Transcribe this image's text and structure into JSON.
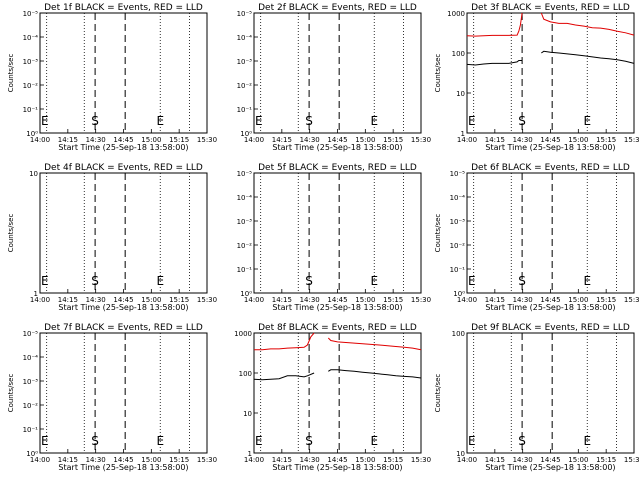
{
  "chart_data": [
    {
      "type": "line",
      "title": "Det 1f BLACK = Events, RED = LLD",
      "xlabel": "Start Time (25-Sep-18 13:58:00)",
      "ylabel": "Counts/sec",
      "x_ticks": [
        "14:00",
        "14:15",
        "14:30",
        "14:45",
        "15:00",
        "15:15",
        "15:30"
      ],
      "y_scale": "log",
      "y_ticks": [
        "10⁰",
        "10⁻¹",
        "10⁻²",
        "10⁻³",
        "10⁻⁴",
        "10⁻⁵"
      ],
      "markers": [
        {
          "label": "E",
          "x": 0
        },
        {
          "label": "S",
          "x": 0.33
        },
        {
          "label": "E",
          "x": 0.72
        }
      ],
      "series": []
    },
    {
      "type": "line",
      "title": "Det 2f BLACK = Events, RED = LLD",
      "xlabel": "Start Time (25-Sep-18 13:58:00)",
      "ylabel": "",
      "x_ticks": [
        "14:00",
        "14:15",
        "14:30",
        "14:45",
        "15:00",
        "15:15",
        "15:30"
      ],
      "y_scale": "log",
      "y_ticks": [
        "10⁰",
        "10⁻¹",
        "10⁻²",
        "10⁻³",
        "10⁻⁴",
        "10⁻⁵"
      ],
      "markers": [
        {
          "label": "E",
          "x": 0
        },
        {
          "label": "S",
          "x": 0.33
        },
        {
          "label": "E",
          "x": 0.72
        }
      ],
      "series": []
    },
    {
      "type": "line",
      "title": "Det 3f BLACK = Events, RED = LLD",
      "xlabel": "Start Time (25-Sep-18 13:58:00)",
      "ylabel": "Counts/sec",
      "x_ticks": [
        "14:00",
        "14:15",
        "14:30",
        "14:45",
        "15:00",
        "15:15",
        "15:30"
      ],
      "y_scale": "log",
      "y_ticks": [
        "1",
        "10",
        "100",
        "1000"
      ],
      "markers": [
        {
          "label": "E",
          "x": 0
        },
        {
          "label": "S",
          "x": 0.33
        },
        {
          "label": "E",
          "x": 0.72
        }
      ],
      "series": [
        {
          "color": "#e00000",
          "gap": [
            0.33,
            0.445
          ],
          "points": [
            [
              0,
              270
            ],
            [
              0.05,
              265
            ],
            [
              0.1,
              270
            ],
            [
              0.15,
              275
            ],
            [
              0.2,
              275
            ],
            [
              0.25,
              275
            ],
            [
              0.3,
              280
            ],
            [
              0.31,
              350
            ],
            [
              0.32,
              500
            ],
            [
              0.33,
              1000
            ],
            [
              0.445,
              1000
            ],
            [
              0.46,
              700
            ],
            [
              0.5,
              600
            ],
            [
              0.55,
              550
            ],
            [
              0.6,
              550
            ],
            [
              0.65,
              500
            ],
            [
              0.7,
              470
            ],
            [
              0.75,
              430
            ],
            [
              0.8,
              420
            ],
            [
              0.85,
              390
            ],
            [
              0.9,
              350
            ],
            [
              0.95,
              320
            ],
            [
              1.0,
              280
            ]
          ]
        },
        {
          "color": "#000000",
          "gap": [
            0.33,
            0.445
          ],
          "points": [
            [
              0,
              52
            ],
            [
              0.05,
              50
            ],
            [
              0.1,
              53
            ],
            [
              0.15,
              55
            ],
            [
              0.2,
              55
            ],
            [
              0.25,
              55
            ],
            [
              0.3,
              60
            ],
            [
              0.31,
              65
            ],
            [
              0.33,
              65
            ],
            [
              0.445,
              100
            ],
            [
              0.46,
              110
            ],
            [
              0.5,
              105
            ],
            [
              0.55,
              100
            ],
            [
              0.6,
              95
            ],
            [
              0.65,
              90
            ],
            [
              0.7,
              85
            ],
            [
              0.75,
              80
            ],
            [
              0.8,
              75
            ],
            [
              0.85,
              72
            ],
            [
              0.9,
              68
            ],
            [
              0.95,
              62
            ],
            [
              1.0,
              55
            ]
          ]
        }
      ]
    },
    {
      "type": "line",
      "title": "Det 4f BLACK = Events, RED = LLD",
      "xlabel": "Start Time (25-Sep-18 13:58:00)",
      "ylabel": "Counts/sec",
      "x_ticks": [
        "14:00",
        "14:15",
        "14:30",
        "14:45",
        "15:00",
        "15:15",
        "15:30"
      ],
      "y_scale": "log",
      "y_ticks": [
        "1",
        "10"
      ],
      "markers": [
        {
          "label": "E",
          "x": 0
        },
        {
          "label": "S",
          "x": 0.33
        },
        {
          "label": "E",
          "x": 0.72
        }
      ],
      "series": []
    },
    {
      "type": "line",
      "title": "Det 5f BLACK = Events, RED = LLD",
      "xlabel": "Start Time (25-Sep-18 13:58:00)",
      "ylabel": "",
      "x_ticks": [
        "14:00",
        "14:15",
        "14:30",
        "14:45",
        "15:00",
        "15:15",
        "15:30"
      ],
      "y_scale": "log",
      "y_ticks": [
        "10⁰",
        "10⁻¹",
        "10⁻²",
        "10⁻³",
        "10⁻⁴",
        "10⁻⁵"
      ],
      "markers": [
        {
          "label": "S",
          "x": 0.33
        },
        {
          "label": "E",
          "x": 0.72
        }
      ],
      "series": []
    },
    {
      "type": "line",
      "title": "Det 6f BLACK = Events, RED = LLD",
      "xlabel": "Start Time (25-Sep-18 13:58:00)",
      "ylabel": "Counts/sec",
      "x_ticks": [
        "14:00",
        "14:15",
        "14:30",
        "14:45",
        "15:00",
        "15:15",
        "15:30"
      ],
      "y_scale": "log",
      "y_ticks": [
        "10⁰",
        "10⁻¹",
        "10⁻²",
        "10⁻³",
        "10⁻⁴",
        "10⁻⁵"
      ],
      "markers": [
        {
          "label": "E",
          "x": 0
        },
        {
          "label": "S",
          "x": 0.33
        },
        {
          "label": "E",
          "x": 0.72
        }
      ],
      "series": []
    },
    {
      "type": "line",
      "title": "Det 7f BLACK = Events, RED = LLD",
      "xlabel": "Start Time (25-Sep-18 13:58:00)",
      "ylabel": "Counts/sec",
      "x_ticks": [
        "14:00",
        "14:15",
        "14:30",
        "14:45",
        "15:00",
        "15:15",
        "15:30"
      ],
      "y_scale": "log",
      "y_ticks": [
        "10⁰",
        "10⁻¹",
        "10⁻²",
        "10⁻³",
        "10⁻⁴",
        "10⁻⁵"
      ],
      "markers": [
        {
          "label": "E",
          "x": 0
        },
        {
          "label": "S",
          "x": 0.33
        },
        {
          "label": "E",
          "x": 0.72
        }
      ],
      "series": []
    },
    {
      "type": "line",
      "title": "Det 8f BLACK = Events, RED = LLD",
      "xlabel": "Start Time (25-Sep-18 13:58:00)",
      "ylabel": "",
      "x_ticks": [
        "14:00",
        "14:15",
        "14:30",
        "14:45",
        "15:00",
        "15:15",
        "15:30"
      ],
      "y_scale": "log",
      "y_ticks": [
        "1",
        "10",
        "100",
        "1000"
      ],
      "markers": [
        {
          "label": "E",
          "x": 0
        },
        {
          "label": "S",
          "x": 0.33
        },
        {
          "label": "E",
          "x": 0.72
        }
      ],
      "series": [
        {
          "color": "#e00000",
          "gap": [
            0.36,
            0.445
          ],
          "points": [
            [
              0,
              380
            ],
            [
              0.05,
              380
            ],
            [
              0.1,
              400
            ],
            [
              0.15,
              400
            ],
            [
              0.2,
              420
            ],
            [
              0.25,
              430
            ],
            [
              0.3,
              440
            ],
            [
              0.32,
              500
            ],
            [
              0.34,
              800
            ],
            [
              0.36,
              1000
            ],
            [
              0.445,
              750
            ],
            [
              0.46,
              650
            ],
            [
              0.5,
              600
            ],
            [
              0.55,
              580
            ],
            [
              0.6,
              560
            ],
            [
              0.65,
              540
            ],
            [
              0.7,
              520
            ],
            [
              0.75,
              500
            ],
            [
              0.8,
              480
            ],
            [
              0.85,
              460
            ],
            [
              0.9,
              440
            ],
            [
              0.95,
              420
            ],
            [
              1.0,
              380
            ]
          ]
        },
        {
          "color": "#000000",
          "gap": [
            0.36,
            0.445
          ],
          "points": [
            [
              0,
              70
            ],
            [
              0.05,
              68
            ],
            [
              0.1,
              70
            ],
            [
              0.15,
              72
            ],
            [
              0.2,
              85
            ],
            [
              0.25,
              85
            ],
            [
              0.3,
              80
            ],
            [
              0.32,
              85
            ],
            [
              0.36,
              100
            ],
            [
              0.445,
              110
            ],
            [
              0.46,
              120
            ],
            [
              0.5,
              120
            ],
            [
              0.55,
              115
            ],
            [
              0.6,
              110
            ],
            [
              0.65,
              105
            ],
            [
              0.7,
              100
            ],
            [
              0.75,
              95
            ],
            [
              0.8,
              90
            ],
            [
              0.85,
              85
            ],
            [
              0.9,
              82
            ],
            [
              0.95,
              80
            ],
            [
              1.0,
              75
            ]
          ]
        }
      ]
    },
    {
      "type": "line",
      "title": "Det 9f BLACK = Events, RED = LLD",
      "xlabel": "Start Time (25-Sep-18 13:58:00)",
      "ylabel": "Counts/sec",
      "x_ticks": [
        "14:00",
        "14:15",
        "14:30",
        "14:45",
        "15:00",
        "15:15",
        "15:30"
      ],
      "y_scale": "log",
      "y_ticks": [
        "10",
        "100"
      ],
      "markers": [
        {
          "label": "E",
          "x": 0
        },
        {
          "label": "S",
          "x": 0.33
        },
        {
          "label": "E",
          "x": 0.72
        }
      ],
      "series": []
    }
  ]
}
